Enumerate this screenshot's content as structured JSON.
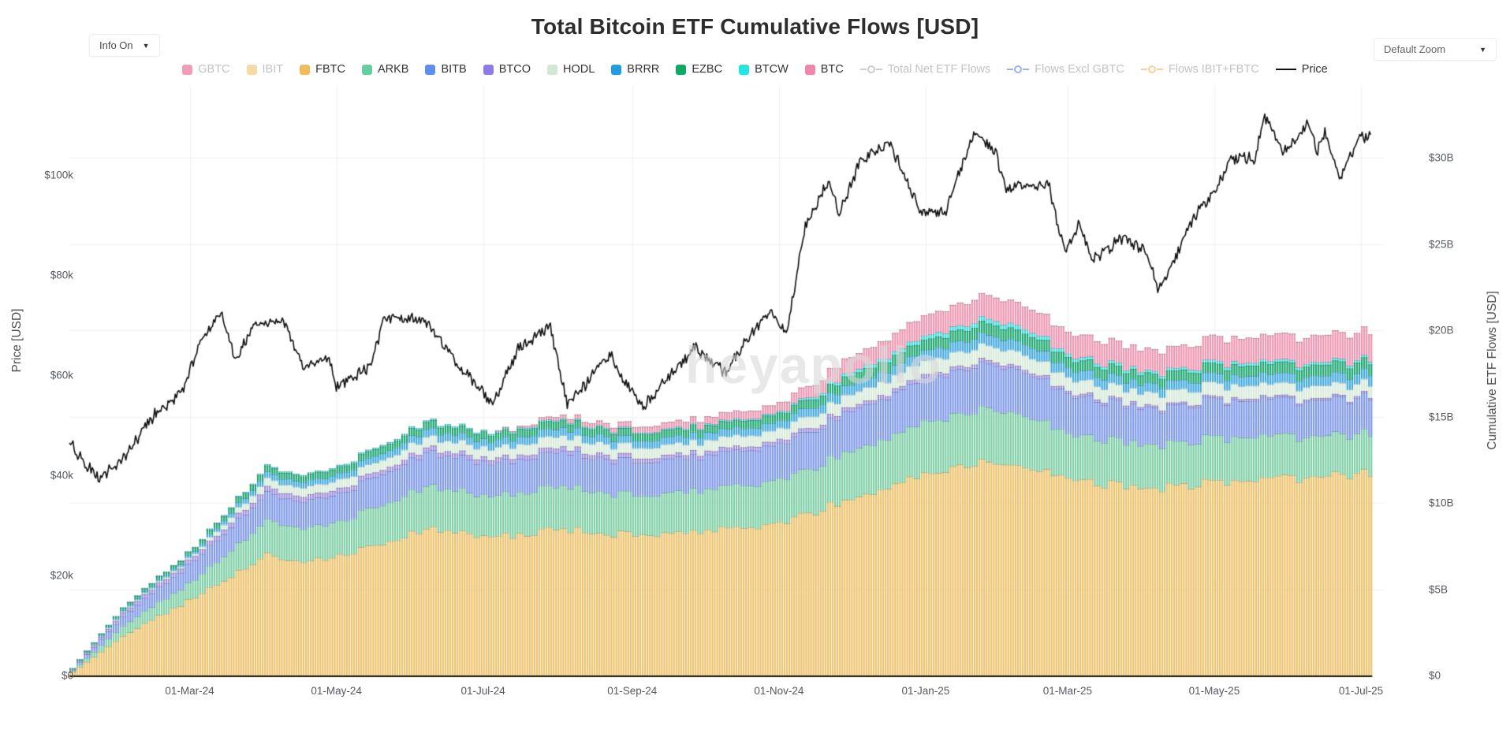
{
  "header": {
    "title": "Total Bitcoin ETF Cumulative Flows [USD]",
    "info_dropdown": "Info On",
    "zoom_dropdown": "Default Zoom"
  },
  "icons": {
    "caret": "▼"
  },
  "watermark": "heyapollo",
  "legend": [
    {
      "label": "GBTC",
      "type": "bar",
      "color": "#f29db8",
      "active": false
    },
    {
      "label": "IBIT",
      "type": "bar",
      "color": "#f7d9a6",
      "active": false
    },
    {
      "label": "FBTC",
      "type": "bar",
      "color": "#f0bd5e",
      "active": true
    },
    {
      "label": "ARKB",
      "type": "bar",
      "color": "#66cfa2",
      "active": true
    },
    {
      "label": "BITB",
      "type": "bar",
      "color": "#5d8ff0",
      "active": true
    },
    {
      "label": "BTCO",
      "type": "bar",
      "color": "#8f7ae8",
      "active": true
    },
    {
      "label": "HODL",
      "type": "bar",
      "color": "#cfe9d4",
      "active": true
    },
    {
      "label": "BRRR",
      "type": "bar",
      "color": "#1f9fe0",
      "active": true
    },
    {
      "label": "EZBC",
      "type": "bar",
      "color": "#0faa62",
      "active": true
    },
    {
      "label": "BTCW",
      "type": "bar",
      "color": "#22e5e5",
      "active": true
    },
    {
      "label": "BTC",
      "type": "bar",
      "color": "#f087a9",
      "active": true
    },
    {
      "label": "Total Net ETF Flows",
      "type": "line",
      "color": "#c9cdd1",
      "active": false
    },
    {
      "label": "Flows Excl GBTC",
      "type": "line",
      "color": "#9ab4ea",
      "active": false
    },
    {
      "label": "Flows IBIT+FBTC",
      "type": "line",
      "color": "#f6cf9e",
      "active": false
    },
    {
      "label": "Price",
      "type": "plainline",
      "color": "#111111",
      "active": true
    }
  ],
  "axes": {
    "left": {
      "title": "Price [USD]",
      "tick_labels": [
        "$0",
        "$20k",
        "$40k",
        "$60k",
        "$80k",
        "$100k"
      ],
      "tick_values": [
        0,
        20,
        40,
        60,
        80,
        100
      ]
    },
    "right": {
      "title": "Cumulative ETF Flows [USD]",
      "tick_labels": [
        "$0",
        "$5B",
        "$10B",
        "$15B",
        "$20B",
        "$25B",
        "$30B"
      ],
      "tick_values": [
        0,
        5,
        10,
        15,
        20,
        25,
        30
      ]
    },
    "x": {
      "tick_labels": [
        "01-Mar-24",
        "01-May-24",
        "01-Jul-24",
        "01-Sep-24",
        "01-Nov-24",
        "01-Jan-25",
        "01-Mar-25",
        "01-May-25",
        "01-Jul-25"
      ],
      "tick_dates": [
        "2024-03-01",
        "2024-05-01",
        "2024-07-01",
        "2024-09-01",
        "2024-11-01",
        "2025-01-01",
        "2025-03-01",
        "2025-05-01",
        "2025-07-01"
      ]
    }
  },
  "chart_data": {
    "type": "stacked-bar+line",
    "title": "Total Bitcoin ETF Cumulative Flows [USD]",
    "x_start": "2024-01-11",
    "x_end": "2025-07-12",
    "y_left": {
      "label": "Price [USD]",
      "unit": "USD thousands",
      "min": 0,
      "max": 115,
      "ticks": [
        0,
        20,
        40,
        60,
        80,
        100
      ]
    },
    "y_right": {
      "label": "Cumulative ETF Flows [USD]",
      "unit": "USD billions",
      "min": 0,
      "max": 31,
      "ticks": [
        0,
        5,
        10,
        15,
        20,
        25,
        30
      ]
    },
    "grid": true,
    "legend_position": "top",
    "note": "GBTC and IBIT series are toggled off; stacked bars show daily cumulative net flows per ETF in USD billions",
    "keyframe_dates": [
      "2024-01-11",
      "2024-02-01",
      "2024-03-01",
      "2024-04-01",
      "2024-04-16",
      "2024-05-02",
      "2024-06-07",
      "2024-07-03",
      "2024-08-01",
      "2024-09-03",
      "2024-10-01",
      "2024-11-01",
      "2024-12-01",
      "2025-01-01",
      "2025-01-24",
      "2025-02-10",
      "2025-03-01",
      "2025-04-09",
      "2025-05-01",
      "2025-06-01",
      "2025-07-01"
    ],
    "stacked_series": [
      {
        "name": "FBTC",
        "color": "#eec169",
        "values": [
          0.2,
          2.3,
          4.5,
          7.0,
          6.7,
          6.9,
          8.6,
          8.0,
          8.5,
          8.1,
          8.4,
          8.8,
          10.4,
          11.6,
          12.4,
          12.2,
          11.2,
          10.9,
          11.2,
          11.4,
          11.75
        ]
      },
      {
        "name": "ARKB",
        "color": "#7acda3",
        "values": [
          0.07,
          0.6,
          1.0,
          2.0,
          1.95,
          2.0,
          2.5,
          2.35,
          2.5,
          2.3,
          2.4,
          2.5,
          2.8,
          3.0,
          3.1,
          3.0,
          2.6,
          2.5,
          2.55,
          2.4,
          2.3
        ]
      },
      {
        "name": "BITB",
        "color": "#7b96e9",
        "values": [
          0.07,
          0.55,
          1.1,
          1.6,
          1.55,
          1.6,
          1.95,
          1.88,
          2.0,
          1.9,
          1.95,
          2.05,
          2.3,
          2.5,
          2.6,
          2.55,
          2.25,
          2.1,
          2.15,
          2.1,
          2.1
        ]
      },
      {
        "name": "BTCO",
        "color": "#a18ce5",
        "values": [
          0.03,
          0.2,
          0.25,
          0.3,
          0.28,
          0.27,
          0.26,
          0.25,
          0.24,
          0.23,
          0.22,
          0.22,
          0.21,
          0.2,
          0.2,
          0.18,
          0.15,
          0.12,
          0.12,
          0.11,
          0.1
        ]
      },
      {
        "name": "HODL",
        "color": "#d7ead9",
        "values": [
          0.01,
          0.06,
          0.12,
          0.5,
          0.5,
          0.52,
          0.62,
          0.6,
          0.65,
          0.6,
          0.62,
          0.65,
          0.75,
          0.82,
          0.86,
          0.85,
          0.78,
          0.75,
          0.78,
          0.72,
          0.7
        ]
      },
      {
        "name": "BRRR",
        "color": "#3da7de",
        "values": [
          0.02,
          0.1,
          0.15,
          0.35,
          0.34,
          0.36,
          0.44,
          0.43,
          0.46,
          0.42,
          0.44,
          0.46,
          0.55,
          0.6,
          0.63,
          0.62,
          0.56,
          0.52,
          0.55,
          0.57,
          0.6
        ]
      },
      {
        "name": "EZBC",
        "color": "#17a56b",
        "values": [
          0.02,
          0.12,
          0.2,
          0.35,
          0.34,
          0.36,
          0.42,
          0.41,
          0.44,
          0.41,
          0.42,
          0.44,
          0.55,
          0.62,
          0.66,
          0.65,
          0.6,
          0.56,
          0.58,
          0.62,
          0.65
        ]
      },
      {
        "name": "BTCW",
        "color": "#39dede",
        "values": [
          0.005,
          0.02,
          0.03,
          0.07,
          0.07,
          0.08,
          0.09,
          0.09,
          0.09,
          0.08,
          0.09,
          0.1,
          0.2,
          0.25,
          0.28,
          0.26,
          0.2,
          0.16,
          0.17,
          0.16,
          0.15
        ]
      },
      {
        "name": "BTC",
        "color": "#ef93af",
        "values": [
          0,
          0,
          0,
          0,
          0,
          0,
          0,
          0,
          0.2,
          0.32,
          0.4,
          0.5,
          0.9,
          1.2,
          1.35,
          1.32,
          1.28,
          1.25,
          1.42,
          1.5,
          1.6
        ]
      }
    ],
    "price_series": {
      "name": "Price",
      "color": "#111111",
      "unit": "USD thousands",
      "dates": [
        "2024-01-11",
        "2024-01-23",
        "2024-02-01",
        "2024-02-15",
        "2024-02-27",
        "2024-03-05",
        "2024-03-14",
        "2024-03-20",
        "2024-03-27",
        "2024-04-09",
        "2024-04-17",
        "2024-04-28",
        "2024-05-01",
        "2024-05-15",
        "2024-05-21",
        "2024-06-06",
        "2024-06-24",
        "2024-07-05",
        "2024-07-15",
        "2024-07-29",
        "2024-08-05",
        "2024-08-23",
        "2024-08-28",
        "2024-09-06",
        "2024-09-27",
        "2024-10-10",
        "2024-10-21",
        "2024-10-29",
        "2024-11-04",
        "2024-11-12",
        "2024-11-22",
        "2024-11-26",
        "2024-12-05",
        "2024-12-17",
        "2024-12-30",
        "2025-01-09",
        "2025-01-21",
        "2025-01-30",
        "2025-02-03",
        "2025-02-21",
        "2025-02-28",
        "2025-03-06",
        "2025-03-11",
        "2025-03-24",
        "2025-04-02",
        "2025-04-08",
        "2025-04-22",
        "2025-05-01",
        "2025-05-08",
        "2025-05-18",
        "2025-05-22",
        "2025-05-30",
        "2025-06-09",
        "2025-06-13",
        "2025-06-16",
        "2025-06-22",
        "2025-06-30",
        "2025-07-08"
      ],
      "values": [
        46.6,
        39.2,
        42.6,
        51.9,
        57.0,
        66.0,
        73.1,
        62.9,
        69.5,
        71.0,
        61.4,
        63.5,
        57.5,
        61.8,
        71.4,
        71.1,
        60.3,
        54.3,
        64.8,
        69.9,
        53.9,
        64.1,
        59.0,
        53.9,
        65.7,
        60.3,
        69.0,
        72.7,
        67.8,
        89.9,
        99.0,
        91.9,
        103.0,
        106.4,
        92.6,
        92.5,
        108.0,
        104.7,
        97.7,
        98.3,
        84.3,
        90.6,
        82.8,
        87.5,
        85.2,
        76.7,
        91.2,
        96.5,
        103.2,
        103.5,
        111.7,
        104.6,
        110.2,
        104.6,
        108.9,
        99.0,
        107.2,
        108.5
      ]
    }
  }
}
